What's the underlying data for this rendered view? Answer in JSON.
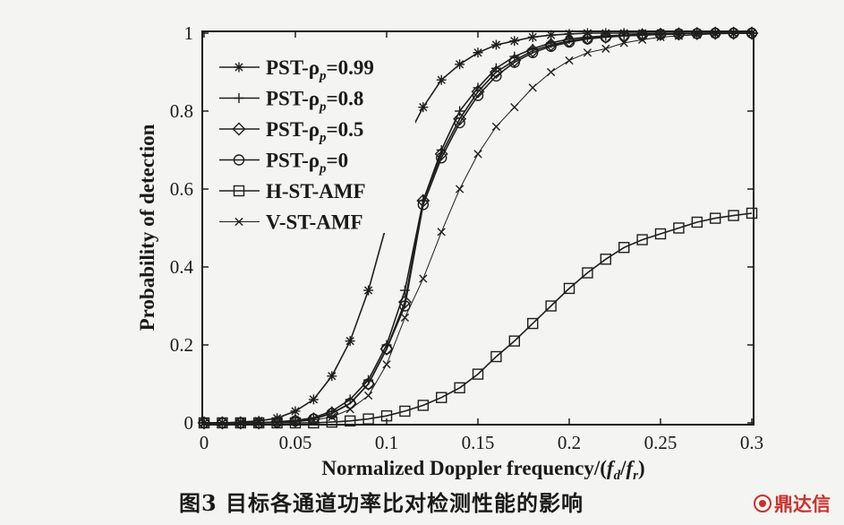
{
  "chart_data": {
    "type": "line",
    "xlabel": "Normalized Doppler frequency/(f_d/f_r)",
    "xlabel_parts": {
      "prefix": "Normalized Doppler frequency/(",
      "f1": "f",
      "s1": "d",
      "mid": "/",
      "f2": "f",
      "s2": "r",
      "suffix": ")"
    },
    "ylabel": "Probability of detection",
    "xlim": [
      0,
      0.3
    ],
    "ylim": [
      0,
      1
    ],
    "xticks": [
      0,
      0.05,
      0.1,
      0.15,
      0.2,
      0.25,
      0.3
    ],
    "xtick_labels": [
      "0",
      "0.05",
      "0.1",
      "0.15",
      "0.2",
      "0.25",
      "0.3"
    ],
    "yticks": [
      0,
      0.2,
      0.4,
      0.6,
      0.8,
      1
    ],
    "ytick_labels": [
      "0",
      "0.2",
      "0.4",
      "0.6",
      "0.8",
      "1"
    ],
    "grid": false,
    "legend_position": "top-left",
    "x": [
      0,
      0.01,
      0.02,
      0.03,
      0.04,
      0.05,
      0.06,
      0.07,
      0.08,
      0.09,
      0.1,
      0.11,
      0.12,
      0.13,
      0.14,
      0.15,
      0.16,
      0.17,
      0.18,
      0.19,
      0.2,
      0.21,
      0.22,
      0.23,
      0.24,
      0.25,
      0.26,
      0.27,
      0.28,
      0.29,
      0.3
    ],
    "series": [
      {
        "name": "PST-ρp=0.99",
        "label_parts": {
          "pre": "PST-ρ",
          "sub": "p",
          "post": "=0.99"
        },
        "marker": "star",
        "values": [
          0,
          0,
          0.002,
          0.005,
          0.012,
          0.03,
          0.06,
          0.12,
          0.21,
          0.34,
          0.51,
          0.72,
          0.81,
          0.88,
          0.92,
          0.95,
          0.97,
          0.98,
          0.99,
          0.995,
          0.998,
          1,
          1,
          1,
          1,
          1,
          1,
          1,
          1,
          1,
          1
        ]
      },
      {
        "name": "PST-ρp=0.8",
        "label_parts": {
          "pre": "PST-ρ",
          "sub": "p",
          "post": "=0.8"
        },
        "marker": "plus",
        "values": [
          0,
          0,
          0,
          0,
          0.003,
          0.006,
          0.013,
          0.03,
          0.06,
          0.11,
          0.2,
          0.34,
          0.57,
          0.7,
          0.8,
          0.86,
          0.91,
          0.94,
          0.96,
          0.975,
          0.985,
          0.99,
          0.993,
          0.995,
          0.997,
          0.998,
          0.999,
          1,
          1,
          1,
          1
        ]
      },
      {
        "name": "PST-ρp=0.5",
        "label_parts": {
          "pre": "PST-ρ",
          "sub": "p",
          "post": "=0.5"
        },
        "marker": "diamond",
        "values": [
          0,
          0,
          0,
          0,
          0.002,
          0.005,
          0.01,
          0.025,
          0.05,
          0.1,
          0.19,
          0.31,
          0.57,
          0.69,
          0.78,
          0.85,
          0.9,
          0.93,
          0.955,
          0.97,
          0.98,
          0.987,
          0.99,
          0.993,
          0.995,
          0.997,
          0.998,
          0.999,
          1,
          1,
          1
        ]
      },
      {
        "name": "PST-ρp=0",
        "label_parts": {
          "pre": "PST-ρ",
          "sub": "p",
          "post": "=0"
        },
        "marker": "circle",
        "values": [
          0,
          0,
          0,
          0,
          0.002,
          0.005,
          0.01,
          0.024,
          0.05,
          0.1,
          0.19,
          0.3,
          0.56,
          0.68,
          0.77,
          0.84,
          0.89,
          0.925,
          0.95,
          0.966,
          0.977,
          0.985,
          0.99,
          0.993,
          0.995,
          0.997,
          0.998,
          0.999,
          1,
          1,
          1
        ]
      },
      {
        "name": "H-ST-AMF",
        "label_parts": {
          "pre": "H-ST-AMF",
          "sub": "",
          "post": ""
        },
        "marker": "square",
        "values": [
          0,
          0,
          0,
          0,
          0,
          0,
          0,
          0.002,
          0.005,
          0.01,
          0.018,
          0.03,
          0.045,
          0.065,
          0.09,
          0.125,
          0.17,
          0.21,
          0.255,
          0.3,
          0.345,
          0.385,
          0.42,
          0.45,
          0.47,
          0.485,
          0.5,
          0.515,
          0.525,
          0.532,
          0.538
        ]
      },
      {
        "name": "V-ST-AMF",
        "label_parts": {
          "pre": "V-ST-AMF",
          "sub": "",
          "post": ""
        },
        "marker": "x",
        "values": [
          0,
          0,
          0,
          0,
          0.001,
          0.003,
          0.007,
          0.015,
          0.035,
          0.07,
          0.15,
          0.27,
          0.37,
          0.49,
          0.6,
          0.69,
          0.76,
          0.81,
          0.86,
          0.9,
          0.93,
          0.95,
          0.96,
          0.975,
          0.983,
          0.99,
          0.993,
          0.996,
          0.998,
          0.999,
          1
        ]
      }
    ]
  },
  "caption": "图3  目标各通道功率比对检测性能的影响",
  "watermark": {
    "text": "鼎达信"
  },
  "colors": {
    "line": "#1e1e1e",
    "background": "#f4f4f2",
    "watermark": "#c8322d"
  }
}
